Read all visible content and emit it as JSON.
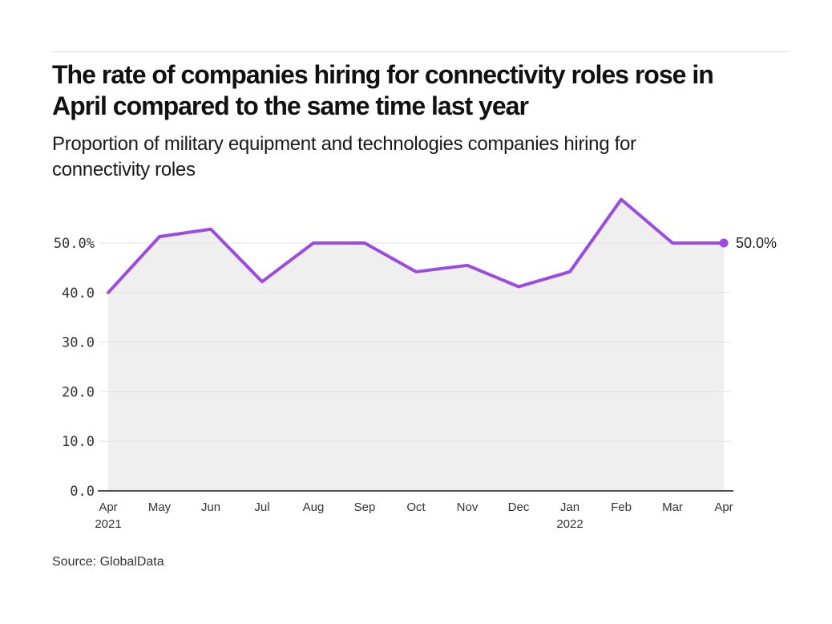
{
  "header": {
    "title_line1": "The rate of companies hiring for connectivity roles rose in",
    "title_line2": "April compared to the same time last year",
    "subtitle_line1": "Proportion of military equipment and technologies companies hiring for",
    "subtitle_line2": "connectivity roles"
  },
  "source": "Source: GlobalData",
  "colors": {
    "line": "#9b4be0",
    "area_fill": "#efefef",
    "grid": "#e3e3e3",
    "axis": "#4d4d4d",
    "divider": "#dcdcdc"
  },
  "chart_data": {
    "type": "line",
    "title": "The rate of companies hiring for connectivity roles rose in April compared to the same time last year",
    "subtitle": "Proportion of military equipment and technologies companies hiring for connectivity roles",
    "categories": [
      "Apr",
      "May",
      "Jun",
      "Jul",
      "Aug",
      "Sep",
      "Oct",
      "Nov",
      "Dec",
      "Jan",
      "Feb",
      "Mar",
      "Apr"
    ],
    "year_markers": [
      {
        "index": 0,
        "label": "2021"
      },
      {
        "index": 9,
        "label": "2022"
      }
    ],
    "values": [
      40.0,
      51.3,
      52.8,
      42.2,
      50.0,
      50.0,
      44.2,
      45.5,
      41.2,
      44.2,
      58.8,
      50.0,
      50.0
    ],
    "end_label": "50.0%",
    "yticks": [
      {
        "value": 0,
        "label": "0.0"
      },
      {
        "value": 10,
        "label": "10.0"
      },
      {
        "value": 20,
        "label": "20.0"
      },
      {
        "value": 30,
        "label": "30.0"
      },
      {
        "value": 40,
        "label": "40.0"
      },
      {
        "value": 50,
        "label": "50.0%"
      }
    ],
    "ylim": [
      0,
      62
    ],
    "xlabel": "",
    "ylabel": "",
    "grid": "horizontal",
    "legend": "none",
    "line_color": "#9b4be0",
    "area_fill": "#efefef",
    "grid_color": "#e3e3e3",
    "axis_color": "#4d4d4d"
  }
}
